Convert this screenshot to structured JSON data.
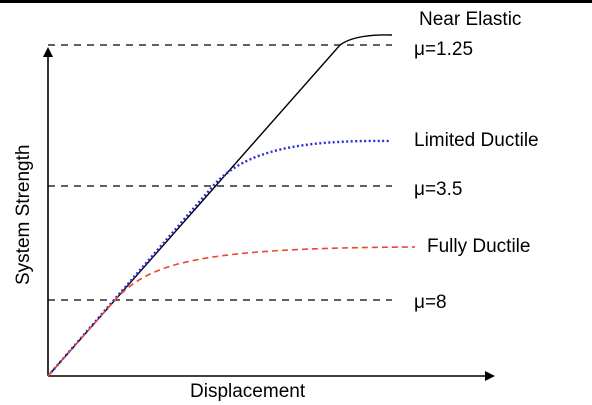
{
  "figure": {
    "axes": {
      "x_label": "Displacement",
      "y_label": "System Strength"
    },
    "curves": [
      {
        "id": "near-elastic",
        "label": "Near Elastic",
        "color": "#000000",
        "style": "solid"
      },
      {
        "id": "limited-ductile",
        "label": "Limited Ductile",
        "color": "#2b2bd6",
        "style": "dotted"
      },
      {
        "id": "fully-ductile",
        "label": "Fully Ductile",
        "color": "#e8492c",
        "style": "dashed"
      }
    ],
    "levels": [
      {
        "id": "mu-1-25",
        "label": "μ=1.25"
      },
      {
        "id": "mu-3-5",
        "label": "μ=3.5"
      },
      {
        "id": "mu-8",
        "label": "μ=8"
      }
    ]
  }
}
